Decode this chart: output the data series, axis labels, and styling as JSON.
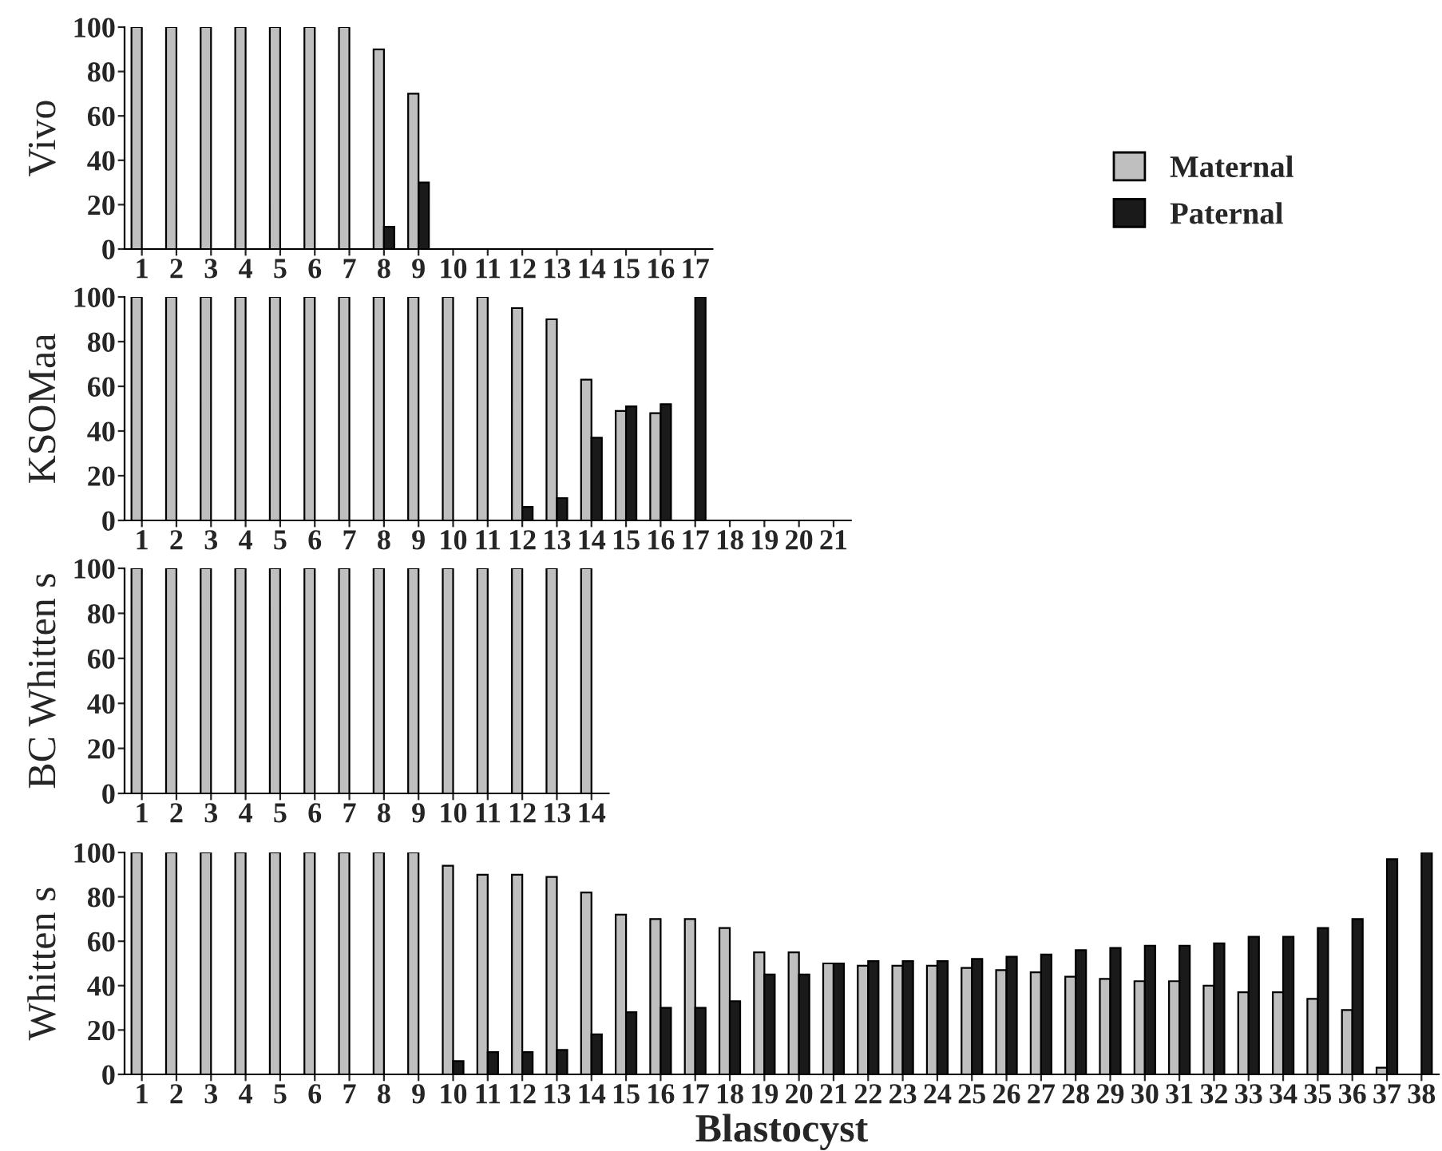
{
  "chart_data": [
    {
      "type": "bar",
      "ylabel": "Vivo",
      "categories": [
        "1",
        "2",
        "3",
        "4",
        "5",
        "6",
        "7",
        "8",
        "9",
        "10",
        "11",
        "12",
        "13",
        "14",
        "15",
        "16",
        "17"
      ],
      "ylim": [
        0,
        100
      ],
      "yticks": [
        0,
        20,
        40,
        60,
        80,
        100
      ],
      "grid": false,
      "legend": "right",
      "series": [
        {
          "name": "Maternal",
          "color": "#bfbfbf",
          "values": [
            100,
            100,
            100,
            100,
            100,
            100,
            100,
            90,
            70,
            null,
            null,
            null,
            null,
            null,
            null,
            null,
            null
          ]
        },
        {
          "name": "Paternal",
          "color": "#1a1a1a",
          "values": [
            null,
            null,
            null,
            null,
            null,
            null,
            null,
            10,
            30,
            null,
            null,
            null,
            null,
            null,
            null,
            null,
            null
          ]
        }
      ]
    },
    {
      "type": "bar",
      "ylabel": "KSOMaa",
      "categories": [
        "1",
        "2",
        "3",
        "4",
        "5",
        "6",
        "7",
        "8",
        "9",
        "10",
        "11",
        "12",
        "13",
        "14",
        "15",
        "16",
        "17",
        "18",
        "19",
        "20",
        "21"
      ],
      "ylim": [
        0,
        100
      ],
      "yticks": [
        0,
        20,
        40,
        60,
        80,
        100
      ],
      "grid": false,
      "series": [
        {
          "color": "#bfbfbf",
          "values": [
            100,
            100,
            100,
            100,
            100,
            100,
            100,
            100,
            100,
            100,
            100,
            95,
            90,
            63,
            49,
            48,
            null,
            null,
            null,
            null,
            null
          ]
        },
        {
          "color": "#1a1a1a",
          "values": [
            null,
            null,
            null,
            null,
            null,
            null,
            null,
            null,
            null,
            null,
            null,
            6,
            10,
            37,
            51,
            52,
            100,
            null,
            null,
            null,
            null
          ]
        }
      ]
    },
    {
      "type": "bar",
      "ylabel": "BC Whitten s",
      "categories": [
        "1",
        "2",
        "3",
        "4",
        "5",
        "6",
        "7",
        "8",
        "9",
        "10",
        "11",
        "12",
        "13",
        "14"
      ],
      "ylim": [
        0,
        100
      ],
      "yticks": [
        0,
        20,
        40,
        60,
        80,
        100
      ],
      "grid": false,
      "series": [
        {
          "color": "#bfbfbf",
          "values": [
            100,
            100,
            100,
            100,
            100,
            100,
            100,
            100,
            100,
            100,
            100,
            100,
            100,
            100
          ]
        },
        {
          "color": "#1a1a1a",
          "values": [
            null,
            null,
            null,
            null,
            null,
            null,
            null,
            null,
            null,
            null,
            null,
            null,
            null,
            null
          ]
        }
      ]
    },
    {
      "type": "bar",
      "ylabel": "Whitten s",
      "xlabel": "Blastocyst",
      "categories": [
        "1",
        "2",
        "3",
        "4",
        "5",
        "6",
        "7",
        "8",
        "9",
        "10",
        "11",
        "12",
        "13",
        "14",
        "15",
        "16",
        "17",
        "18",
        "19",
        "20",
        "21",
        "22",
        "23",
        "24",
        "25",
        "26",
        "27",
        "28",
        "29",
        "30",
        "31",
        "32",
        "33",
        "34",
        "35",
        "36",
        "37",
        "38"
      ],
      "ylim": [
        0,
        100
      ],
      "yticks": [
        0,
        20,
        40,
        60,
        80,
        100
      ],
      "grid": false,
      "series": [
        {
          "color": "#bfbfbf",
          "values": [
            100,
            100,
            100,
            100,
            100,
            100,
            100,
            100,
            100,
            94,
            90,
            90,
            89,
            82,
            72,
            70,
            70,
            66,
            55,
            55,
            50,
            49,
            49,
            49,
            48,
            47,
            46,
            44,
            43,
            42,
            42,
            40,
            37,
            37,
            34,
            29,
            3,
            null
          ]
        },
        {
          "color": "#1a1a1a",
          "values": [
            null,
            null,
            null,
            null,
            null,
            null,
            null,
            null,
            null,
            6,
            10,
            10,
            11,
            18,
            28,
            30,
            30,
            33,
            45,
            45,
            50,
            51,
            51,
            51,
            52,
            53,
            54,
            56,
            57,
            58,
            58,
            59,
            62,
            62,
            66,
            70,
            97,
            100
          ]
        }
      ]
    }
  ]
}
